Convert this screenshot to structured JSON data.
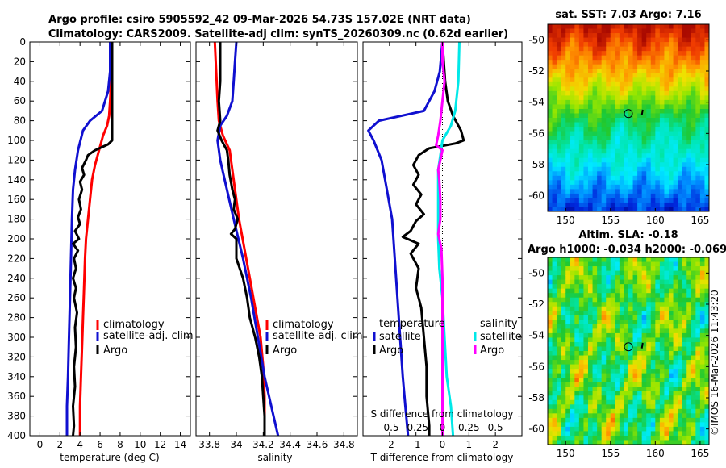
{
  "header": {
    "title_line1": "Argo profile: csiro 5905592_42 09-Mar-2026 54.73S 157.02E (NRT data)",
    "title_line2": "Climatology: CARS2009. Satellite-adj clim: synTS_20260309.nc (0.62d earlier)"
  },
  "timestamp": "©IMOS 16-Mar-2026 11:43:20",
  "colors": {
    "red": "#ff0000",
    "blue": "#1010d0",
    "black": "#000000",
    "cyan": "#00e8e8",
    "magenta": "#ff00ff"
  },
  "chart_data": [
    {
      "type": "line",
      "name": "temperature-profile",
      "xlabel": "temperature (deg C)",
      "xlim": [
        -1,
        15
      ],
      "ylim": [
        400,
        0
      ],
      "xticks": [
        0,
        2,
        4,
        6,
        8,
        10,
        12,
        14
      ],
      "yticks": [
        0,
        20,
        40,
        60,
        80,
        100,
        120,
        140,
        160,
        180,
        200,
        220,
        240,
        260,
        280,
        300,
        320,
        340,
        360,
        380,
        400
      ],
      "legend": [
        "climatology",
        "satellite-adj. clim",
        "Argo"
      ],
      "series": [
        {
          "name": "climatology",
          "color": "#ff0000",
          "points": [
            [
              7.1,
              0
            ],
            [
              7.1,
              40
            ],
            [
              7.0,
              60
            ],
            [
              6.9,
              75
            ],
            [
              6.7,
              85
            ],
            [
              6.3,
              95
            ],
            [
              5.9,
              110
            ],
            [
              5.5,
              125
            ],
            [
              5.2,
              140
            ],
            [
              5.0,
              160
            ],
            [
              4.8,
              180
            ],
            [
              4.6,
              200
            ],
            [
              4.5,
              220
            ],
            [
              4.4,
              250
            ],
            [
              4.3,
              280
            ],
            [
              4.2,
              310
            ],
            [
              4.1,
              340
            ],
            [
              4.0,
              370
            ],
            [
              4.0,
              400
            ]
          ]
        },
        {
          "name": "satellite-adj. clim",
          "color": "#1010d0",
          "points": [
            [
              7.0,
              0
            ],
            [
              7.0,
              30
            ],
            [
              6.8,
              50
            ],
            [
              6.2,
              70
            ],
            [
              5.0,
              80
            ],
            [
              4.3,
              90
            ],
            [
              3.8,
              110
            ],
            [
              3.5,
              130
            ],
            [
              3.3,
              150
            ],
            [
              3.2,
              180
            ],
            [
              3.1,
              220
            ],
            [
              3.0,
              260
            ],
            [
              2.9,
              300
            ],
            [
              2.8,
              340
            ],
            [
              2.7,
              370
            ],
            [
              2.7,
              400
            ]
          ]
        },
        {
          "name": "Argo",
          "color": "#000000",
          "points": [
            [
              7.2,
              0
            ],
            [
              7.2,
              60
            ],
            [
              7.2,
              100
            ],
            [
              6.8,
              104
            ],
            [
              5.5,
              110
            ],
            [
              4.8,
              115
            ],
            [
              4.6,
              120
            ],
            [
              4.2,
              128
            ],
            [
              4.4,
              135
            ],
            [
              4.0,
              142
            ],
            [
              4.2,
              150
            ],
            [
              3.9,
              160
            ],
            [
              4.1,
              170
            ],
            [
              3.8,
              178
            ],
            [
              4.0,
              185
            ],
            [
              3.5,
              192
            ],
            [
              3.9,
              200
            ],
            [
              3.3,
              205
            ],
            [
              3.8,
              212
            ],
            [
              3.4,
              220
            ],
            [
              3.6,
              230
            ],
            [
              3.3,
              240
            ],
            [
              3.6,
              250
            ],
            [
              3.4,
              260
            ],
            [
              3.7,
              275
            ],
            [
              3.5,
              290
            ],
            [
              3.6,
              310
            ],
            [
              3.4,
              330
            ],
            [
              3.5,
              350
            ],
            [
              3.3,
              370
            ],
            [
              3.4,
              390
            ],
            [
              3.3,
              400
            ]
          ]
        }
      ]
    },
    {
      "type": "line",
      "name": "salinity-profile",
      "xlabel": "salinity",
      "xlim": [
        33.7,
        34.9
      ],
      "ylim": [
        400,
        0
      ],
      "xticks": [
        33.8,
        34,
        34.2,
        34.4,
        34.6,
        34.8
      ],
      "legend": [
        "climatology",
        "satellite-adj. clim",
        "Argo"
      ],
      "series": [
        {
          "name": "climatology",
          "color": "#ff0000",
          "points": [
            [
              33.84,
              0
            ],
            [
              33.85,
              30
            ],
            [
              33.86,
              60
            ],
            [
              33.87,
              80
            ],
            [
              33.9,
              95
            ],
            [
              33.95,
              110
            ],
            [
              33.97,
              130
            ],
            [
              33.99,
              150
            ],
            [
              34.02,
              180
            ],
            [
              34.06,
              210
            ],
            [
              34.1,
              240
            ],
            [
              34.14,
              270
            ],
            [
              34.18,
              300
            ],
            [
              34.2,
              330
            ],
            [
              34.21,
              360
            ],
            [
              34.21,
              400
            ]
          ]
        },
        {
          "name": "satellite-adj. clim",
          "color": "#1010d0",
          "points": [
            [
              34.0,
              0
            ],
            [
              33.99,
              20
            ],
            [
              33.98,
              40
            ],
            [
              33.97,
              60
            ],
            [
              33.93,
              75
            ],
            [
              33.88,
              85
            ],
            [
              33.86,
              100
            ],
            [
              33.88,
              120
            ],
            [
              33.93,
              150
            ],
            [
              33.98,
              180
            ],
            [
              34.05,
              220
            ],
            [
              34.11,
              260
            ],
            [
              34.16,
              300
            ],
            [
              34.21,
              340
            ],
            [
              34.26,
              370
            ],
            [
              34.31,
              400
            ]
          ]
        },
        {
          "name": "Argo",
          "color": "#000000",
          "points": [
            [
              33.88,
              0
            ],
            [
              33.88,
              40
            ],
            [
              33.87,
              60
            ],
            [
              33.88,
              80
            ],
            [
              33.86,
              90
            ],
            [
              33.89,
              100
            ],
            [
              33.93,
              110
            ],
            [
              33.94,
              120
            ],
            [
              33.95,
              135
            ],
            [
              33.97,
              150
            ],
            [
              33.99,
              160
            ],
            [
              33.98,
              170
            ],
            [
              34.01,
              180
            ],
            [
              33.99,
              190
            ],
            [
              33.96,
              195
            ],
            [
              34.0,
              200
            ],
            [
              34.0,
              220
            ],
            [
              34.05,
              240
            ],
            [
              34.08,
              260
            ],
            [
              34.1,
              280
            ],
            [
              34.14,
              300
            ],
            [
              34.17,
              320
            ],
            [
              34.19,
              340
            ],
            [
              34.2,
              360
            ],
            [
              34.21,
              380
            ],
            [
              34.21,
              400
            ]
          ]
        }
      ]
    },
    {
      "type": "line",
      "name": "difference-profile",
      "xlabel": "T difference from climatology",
      "top_axis_label": "S difference from climatology",
      "xlim": [
        -3,
        3
      ],
      "s_xlim": [
        -0.75,
        0.75
      ],
      "ylim": [
        400,
        0
      ],
      "xticks": [
        -2,
        -1,
        0,
        1,
        2
      ],
      "s_ticks": [
        -0.5,
        -0.25,
        0,
        0.25,
        0.5
      ],
      "s_tick_labels": [
        "-0.5",
        "-0.25",
        "0",
        "0.25",
        "0.5"
      ],
      "legend_temperature_title": "temperature",
      "legend_salinity_title": "salinity",
      "legend_temperature": [
        "satellite",
        "Argo"
      ],
      "legend_salinity": [
        "satellite",
        "Argo"
      ],
      "series": [
        {
          "name": "temperature satellite",
          "color": "#1010d0",
          "scale": "T",
          "points": [
            [
              0.0,
              0
            ],
            [
              -0.1,
              30
            ],
            [
              -0.3,
              50
            ],
            [
              -0.7,
              70
            ],
            [
              -2.4,
              80
            ],
            [
              -2.8,
              90
            ],
            [
              -2.6,
              100
            ],
            [
              -2.3,
              120
            ],
            [
              -2.1,
              150
            ],
            [
              -1.9,
              180
            ],
            [
              -1.8,
              220
            ],
            [
              -1.7,
              260
            ],
            [
              -1.6,
              300
            ],
            [
              -1.5,
              340
            ],
            [
              -1.4,
              370
            ],
            [
              -1.3,
              400
            ]
          ]
        },
        {
          "name": "temperature Argo",
          "color": "#000000",
          "scale": "T",
          "points": [
            [
              0.0,
              0
            ],
            [
              0.1,
              40
            ],
            [
              0.2,
              60
            ],
            [
              0.4,
              75
            ],
            [
              0.7,
              90
            ],
            [
              0.8,
              100
            ],
            [
              0.5,
              103
            ],
            [
              -0.5,
              108
            ],
            [
              -0.9,
              115
            ],
            [
              -1.1,
              125
            ],
            [
              -0.9,
              135
            ],
            [
              -1.1,
              145
            ],
            [
              -0.8,
              155
            ],
            [
              -1.0,
              165
            ],
            [
              -0.7,
              175
            ],
            [
              -1.0,
              182
            ],
            [
              -1.2,
              192
            ],
            [
              -1.5,
              198
            ],
            [
              -0.9,
              205
            ],
            [
              -1.2,
              215
            ],
            [
              -0.9,
              230
            ],
            [
              -1.0,
              250
            ],
            [
              -0.8,
              270
            ],
            [
              -0.7,
              300
            ],
            [
              -0.6,
              330
            ],
            [
              -0.6,
              360
            ],
            [
              -0.5,
              390
            ],
            [
              -0.5,
              400
            ]
          ]
        },
        {
          "name": "salinity satellite",
          "color": "#00e8e8",
          "scale": "S",
          "points": [
            [
              0.16,
              0
            ],
            [
              0.15,
              40
            ],
            [
              0.12,
              70
            ],
            [
              0.08,
              85
            ],
            [
              0.0,
              100
            ],
            [
              -0.02,
              115
            ],
            [
              -0.04,
              130
            ],
            [
              -0.04,
              150
            ],
            [
              -0.04,
              180
            ],
            [
              -0.04,
              200
            ],
            [
              -0.03,
              230
            ],
            [
              0.0,
              260
            ],
            [
              0.02,
              300
            ],
            [
              0.04,
              340
            ],
            [
              0.08,
              370
            ],
            [
              0.1,
              400
            ]
          ]
        },
        {
          "name": "salinity Argo",
          "color": "#ff00ff",
          "scale": "S",
          "points": [
            [
              0.0,
              0
            ],
            [
              0.0,
              20
            ],
            [
              0.02,
              40
            ],
            [
              0.0,
              60
            ],
            [
              -0.02,
              80
            ],
            [
              -0.04,
              95
            ],
            [
              -0.06,
              105
            ],
            [
              0.0,
              110
            ],
            [
              -0.02,
              120
            ],
            [
              -0.04,
              130
            ],
            [
              -0.03,
              140
            ],
            [
              -0.02,
              160
            ],
            [
              -0.02,
              180
            ],
            [
              -0.04,
              195
            ],
            [
              -0.01,
              210
            ],
            [
              0.0,
              240
            ],
            [
              0.0,
              280
            ],
            [
              0.0,
              320
            ],
            [
              0.0,
              360
            ],
            [
              0.0,
              400
            ]
          ]
        }
      ]
    },
    {
      "type": "heatmap",
      "name": "sst-map",
      "title": "sat. SST: 7.03 Argo: 7.16",
      "xlim": [
        148,
        166
      ],
      "ylim": [
        -61,
        -49
      ],
      "xticks": [
        150,
        155,
        160,
        165
      ],
      "yticks": [
        -50,
        -52,
        -54,
        -56,
        -58,
        -60
      ],
      "argo_position": [
        157.0,
        -54.73
      ]
    },
    {
      "type": "heatmap",
      "name": "sla-map",
      "title_line1": "Altim. SLA: -0.18",
      "title_line2": "Argo h1000: -0.034 h2000: -0.069",
      "xlim": [
        148,
        166
      ],
      "ylim": [
        -61,
        -49
      ],
      "xticks": [
        150,
        155,
        160,
        165
      ],
      "yticks": [
        -50,
        -52,
        -54,
        -56,
        -58,
        -60
      ],
      "argo_position": [
        157.0,
        -54.73
      ]
    }
  ]
}
